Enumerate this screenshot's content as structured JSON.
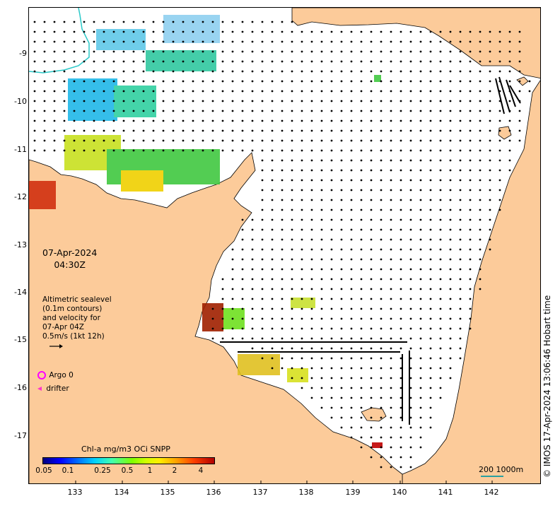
{
  "map": {
    "date": "07-Apr-2024",
    "time": "04:30Z",
    "altimetry_lines": [
      "Altimetric sealevel",
      "(0.1m contours)",
      "and velocity for",
      "07-Apr 04Z",
      "0.5m/s (1kt 12h)"
    ],
    "legend": {
      "argo_label": "Argo 0",
      "drifter_label": "drifter",
      "argo_color": "#ff00ff",
      "drifter_color": "#ff33cc"
    },
    "colorbar": {
      "title": "Chl-a mg/m3 OCi SNPP",
      "ticks": [
        "0.05",
        "0.1",
        "0.25",
        "0.5",
        "1",
        "2",
        "4"
      ]
    },
    "scale_label": "200  1000m",
    "credit": "© IMOS 17-Apr-2024 13:06:46 Hobart time",
    "lon_ticks": [
      "133",
      "134",
      "135",
      "136",
      "137",
      "138",
      "139",
      "140",
      "141",
      "142"
    ],
    "lat_ticks": [
      "-9",
      "-10",
      "-11",
      "-12",
      "-13",
      "-14",
      "-15",
      "-16",
      "-17"
    ],
    "colors": {
      "land": "#fccb9a",
      "ocean": "#ffffff",
      "coast": "#000000",
      "isobath": "#2ac8c8",
      "vector": "#000000"
    },
    "icons": [
      "argo-float-icon",
      "drifter-icon",
      "velocity-scale-arrow-icon"
    ]
  }
}
